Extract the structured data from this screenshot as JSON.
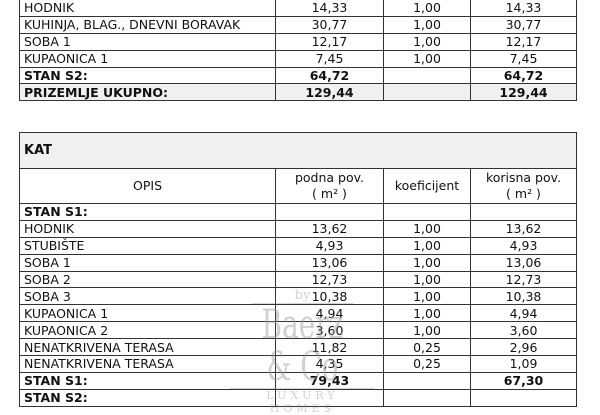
{
  "prizemlje": {
    "rows": [
      {
        "opis": "HODNIK",
        "podna": "14,33",
        "koef": "1,00",
        "korisna": "14,33"
      },
      {
        "opis": "KUHINJA, BLAG., DNEVNI BORAVAK",
        "podna": "30,77",
        "koef": "1,00",
        "korisna": "30,77"
      },
      {
        "opis": "SOBA 1",
        "podna": "12,17",
        "koef": "1,00",
        "korisna": "12,17"
      },
      {
        "opis": "KUPAONICA 1",
        "podna": "7,45",
        "koef": "1,00",
        "korisna": "7,45"
      },
      {
        "opis": "STAN S2:",
        "podna": "64,72",
        "koef": "",
        "korisna": "64,72",
        "bold": true
      },
      {
        "opis": "PRIZEMLJE UKUPNO:",
        "podna": "129,44",
        "koef": "",
        "korisna": "129,44",
        "bold": true,
        "gray": true
      }
    ]
  },
  "kat": {
    "title": "KAT",
    "headers": {
      "opis": "OPIS",
      "podna": "podna pov.",
      "podna_unit": "( m² )",
      "koef": "koeficijent",
      "korisna": "korisna pov.",
      "korisna_unit": "( m² )"
    },
    "rows": [
      {
        "opis": "STAN S1:",
        "podna": "",
        "koef": "",
        "korisna": "",
        "bold": true
      },
      {
        "opis": "HODNIK",
        "podna": "13,62",
        "koef": "1,00",
        "korisna": "13,62"
      },
      {
        "opis": "STUBIŠTE",
        "podna": "4,93",
        "koef": "1,00",
        "korisna": "4,93"
      },
      {
        "opis": "SOBA 1",
        "podna": "13,06",
        "koef": "1,00",
        "korisna": "13,06"
      },
      {
        "opis": "SOBA 2",
        "podna": "12,73",
        "koef": "1,00",
        "korisna": "12,73"
      },
      {
        "opis": "SOBA 3",
        "podna": "10,38",
        "koef": "1,00",
        "korisna": "10,38"
      },
      {
        "opis": "KUPAONICA 1",
        "podna": "4,94",
        "koef": "1,00",
        "korisna": "4,94"
      },
      {
        "opis": "KUPAONICA 2",
        "podna": "3,60",
        "koef": "1,00",
        "korisna": "3,60"
      },
      {
        "opis": "NENATKRIVENA TERASA",
        "podna": "11,82",
        "koef": "0,25",
        "korisna": "2,96"
      },
      {
        "opis": "NENATKRIVENA TERASA",
        "podna": "4,35",
        "koef": "0,25",
        "korisna": "1,09"
      },
      {
        "opis": "STAN S1:",
        "podna": "79,43",
        "koef": "",
        "korisna": "67,30",
        "bold": true
      },
      {
        "opis": "STAN S2:",
        "podna": "",
        "koef": "",
        "korisna": "",
        "bold": true
      }
    ]
  },
  "watermark": {
    "by": "by",
    "name": "Baerz & Co",
    "tagline": "LUXURY HOMES"
  }
}
